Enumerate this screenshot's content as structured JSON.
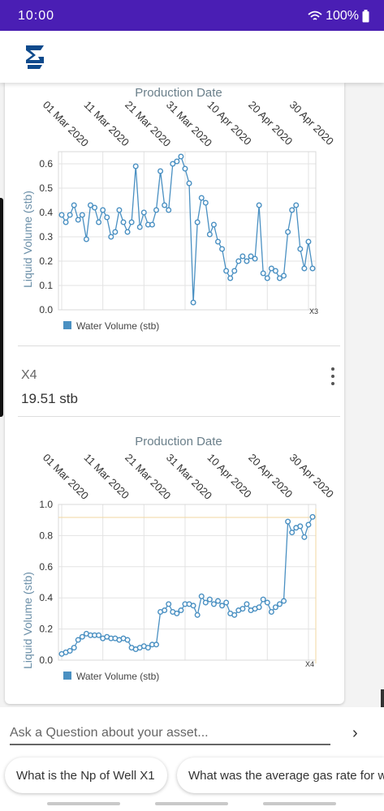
{
  "status": {
    "time": "10:00",
    "battery": "100%"
  },
  "charts": [
    {
      "top_title": "Production Date",
      "ylabel": "Liquid Volume (stb)",
      "legend": "Water Volume (stb)",
      "corner_label": "X3"
    },
    {
      "top_title": "Production Date",
      "ylabel": "Liquid Volume (stb)",
      "legend": "Water Volume (stb)",
      "corner_label": "X4"
    }
  ],
  "well": {
    "name": "X4",
    "value": "19.51 stb"
  },
  "ask": {
    "placeholder": "Ask a Question about your asset..."
  },
  "chips": [
    "What is the Np of Well X1",
    "What was the average gas rate for w"
  ],
  "colors": {
    "status_bar": "#4a1eb4",
    "series": "#4a90c2"
  },
  "chart_data": [
    {
      "type": "line",
      "title": "Production Date",
      "ylabel": "Liquid Volume (stb)",
      "x_tick_labels": [
        "01 Mar 2020",
        "11 Mar 2020",
        "21 Mar 2020",
        "31 Mar 2020",
        "10 Apr 2020",
        "20 Apr 2020",
        "30 Apr 2020"
      ],
      "y_tick_labels": [
        "0.0",
        "0.1",
        "0.2",
        "0.3",
        "0.4",
        "0.5",
        "0.6"
      ],
      "ylim": [
        0,
        0.65
      ],
      "x_start": "2020-03-01",
      "grid": true,
      "legend_position": "bottom",
      "series": [
        {
          "name": "Water Volume (stb)",
          "values": [
            0.39,
            0.36,
            0.39,
            0.43,
            0.37,
            0.39,
            0.29,
            0.43,
            0.42,
            0.36,
            0.41,
            0.38,
            0.3,
            0.32,
            0.41,
            0.36,
            0.32,
            0.36,
            0.59,
            0.34,
            0.4,
            0.35,
            0.35,
            0.41,
            0.57,
            0.43,
            0.41,
            0.6,
            0.61,
            0.63,
            0.58,
            0.52,
            0.03,
            0.36,
            0.46,
            0.44,
            0.31,
            0.35,
            0.28,
            0.25,
            0.16,
            0.13,
            0.16,
            0.2,
            0.22,
            0.2,
            0.22,
            0.21,
            0.43,
            0.15,
            0.13,
            0.17,
            0.16,
            0.13,
            0.14,
            0.32,
            0.41,
            0.43,
            0.25,
            0.17,
            0.28,
            0.17
          ]
        }
      ]
    },
    {
      "type": "line",
      "title": "Production Date",
      "ylabel": "Liquid Volume (stb)",
      "x_tick_labels": [
        "01 Mar 2020",
        "11 Mar 2020",
        "21 Mar 2020",
        "31 Mar 2020",
        "10 Apr 2020",
        "20 Apr 2020",
        "30 Apr 2020"
      ],
      "y_tick_labels": [
        "0.0",
        "0.2",
        "0.4",
        "0.6",
        "0.8",
        "1.0"
      ],
      "ylim": [
        0,
        1.0
      ],
      "x_start": "2020-03-01",
      "grid": true,
      "legend_position": "bottom",
      "series": [
        {
          "name": "Water Volume (stb)",
          "values": [
            0.04,
            0.05,
            0.06,
            0.08,
            0.13,
            0.15,
            0.17,
            0.16,
            0.16,
            0.16,
            0.14,
            0.15,
            0.14,
            0.14,
            0.13,
            0.14,
            0.13,
            0.08,
            0.07,
            0.08,
            0.09,
            0.08,
            0.1,
            0.1,
            0.31,
            0.32,
            0.36,
            0.31,
            0.3,
            0.32,
            0.36,
            0.36,
            0.35,
            0.29,
            0.41,
            0.37,
            0.39,
            0.36,
            0.38,
            0.35,
            0.37,
            0.3,
            0.29,
            0.32,
            0.33,
            0.36,
            0.32,
            0.33,
            0.34,
            0.39,
            0.37,
            0.31,
            0.34,
            0.36,
            0.38,
            0.89,
            0.82,
            0.85,
            0.86,
            0.79,
            0.87,
            0.92
          ]
        }
      ]
    }
  ]
}
